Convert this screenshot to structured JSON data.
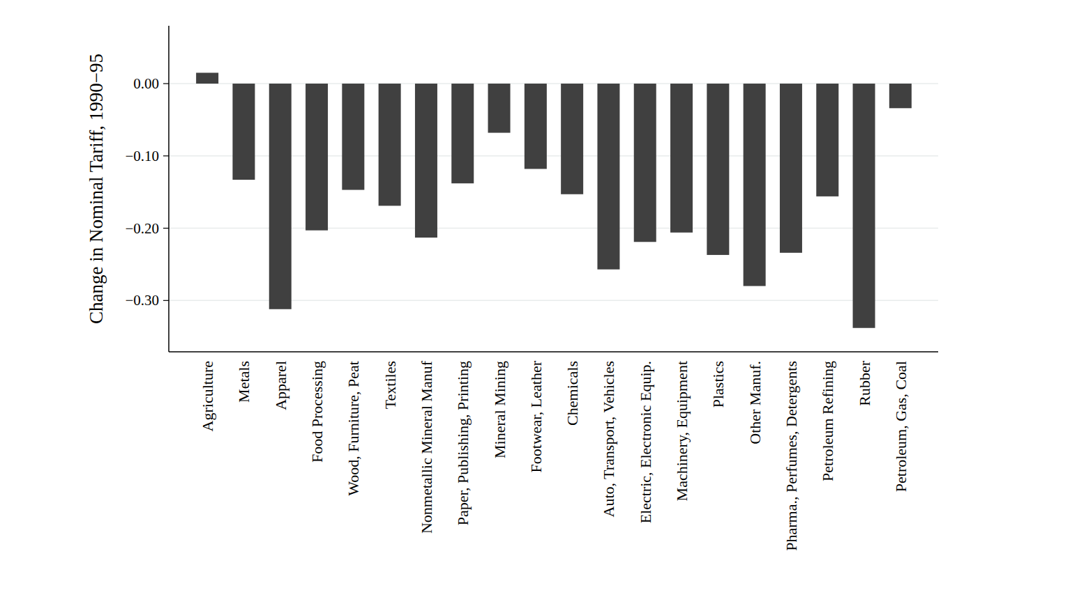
{
  "chart_data": {
    "type": "bar",
    "y_label": "Change in Nominal Tariff, 1990−95",
    "categories": [
      "Agriculture",
      "Metals",
      "Apparel",
      "Food Processing",
      "Wood, Furniture, Peat",
      "Textiles",
      "Nonmetallic Mineral Manuf",
      "Paper, Publishing, Printing",
      "Mineral Mining",
      "Footwear, Leather",
      "Chemicals",
      "Auto, Transport, Vehicles",
      "Electric, Electronic Equip.",
      "Machinery, Equipment",
      "Plastics",
      "Other Manuf.",
      "Pharma., Perfumes, Detergents",
      "Petroleum Refining",
      "Rubber",
      "Petroleum, Gas, Coal"
    ],
    "values": [
      0.015,
      -0.133,
      -0.312,
      -0.203,
      -0.147,
      -0.169,
      -0.213,
      -0.138,
      -0.068,
      -0.118,
      -0.153,
      -0.257,
      -0.219,
      -0.206,
      -0.237,
      -0.28,
      -0.234,
      -0.156,
      -0.338,
      -0.034
    ],
    "color": "#404040",
    "ylim": [
      -0.371,
      0.08
    ],
    "yticks": [
      {
        "value": 0,
        "label": "0.00"
      },
      {
        "value": -0.1,
        "label": "−0.10"
      },
      {
        "value": -0.2,
        "label": "−0.20"
      },
      {
        "value": -0.3,
        "label": "−0.30"
      }
    ],
    "grid": true
  }
}
